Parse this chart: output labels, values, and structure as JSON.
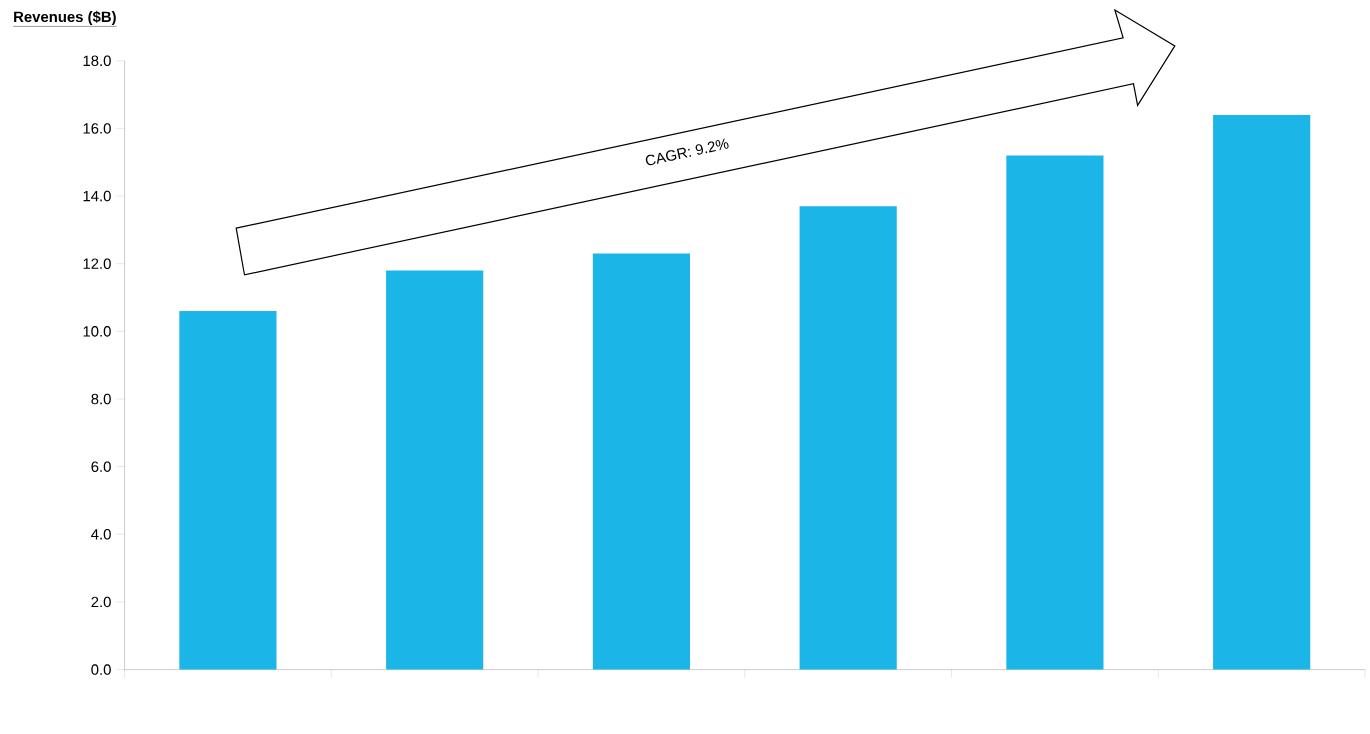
{
  "chart_data": {
    "type": "bar",
    "title": "Revenues ($B)",
    "categories": [
      null,
      null,
      null,
      null,
      null,
      null
    ],
    "values": [
      10.6,
      11.8,
      12.3,
      13.7,
      15.2,
      16.4
    ],
    "color": "#1cb5e8",
    "ylim": [
      0,
      18
    ],
    "yticks": [
      {
        "value": 0,
        "label": "0.0"
      },
      {
        "value": 2,
        "label": "2.0"
      },
      {
        "value": 4,
        "label": "4.0"
      },
      {
        "value": 6,
        "label": "6.0"
      },
      {
        "value": 8,
        "label": "8.0"
      },
      {
        "value": 10,
        "label": "10.0"
      },
      {
        "value": 12,
        "label": "12.0"
      },
      {
        "value": 14,
        "label": "14.0"
      },
      {
        "value": 16,
        "label": "16.0"
      },
      {
        "value": 18,
        "label": "18.0"
      }
    ],
    "annotations": [
      "CAGR: 9.2%"
    ],
    "grid": false
  }
}
